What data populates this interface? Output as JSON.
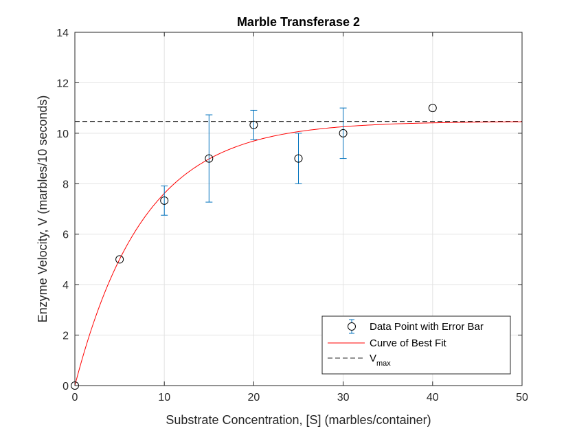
{
  "chart_data": {
    "type": "scatter",
    "title": "Marble Transferase 2",
    "xlabel": "Substrate Concentration, [S] (marbles/container)",
    "ylabel": "Enzyme Velocity, V (marbles/10 seconds)",
    "xlim": [
      0,
      50
    ],
    "ylim": [
      0,
      14
    ],
    "xticks": [
      0,
      10,
      20,
      30,
      40,
      50
    ],
    "yticks": [
      0,
      2,
      4,
      6,
      8,
      10,
      12,
      14
    ],
    "grid": true,
    "legend_position": "bottom-right",
    "series": [
      {
        "name": "Data Point with Error Bar",
        "kind": "errorbar",
        "color": "#0072BD",
        "marker_color": "#000000",
        "x": [
          0,
          5,
          10,
          15,
          20,
          25,
          30,
          40
        ],
        "y": [
          0,
          5,
          7.33,
          9,
          10.33,
          9,
          10,
          11
        ],
        "error": [
          0,
          0,
          0.58,
          1.73,
          0.58,
          1.0,
          1.0,
          0
        ]
      },
      {
        "name": "Curve of Best Fit",
        "kind": "line",
        "color": "#FF0000",
        "model": "V = Vmax*(1-exp(-k*S))",
        "vmax": 10.47,
        "k": 0.13
      },
      {
        "name": "V",
        "name_subscript": "max",
        "kind": "hline",
        "color": "#262626",
        "y": 10.47
      }
    ]
  }
}
